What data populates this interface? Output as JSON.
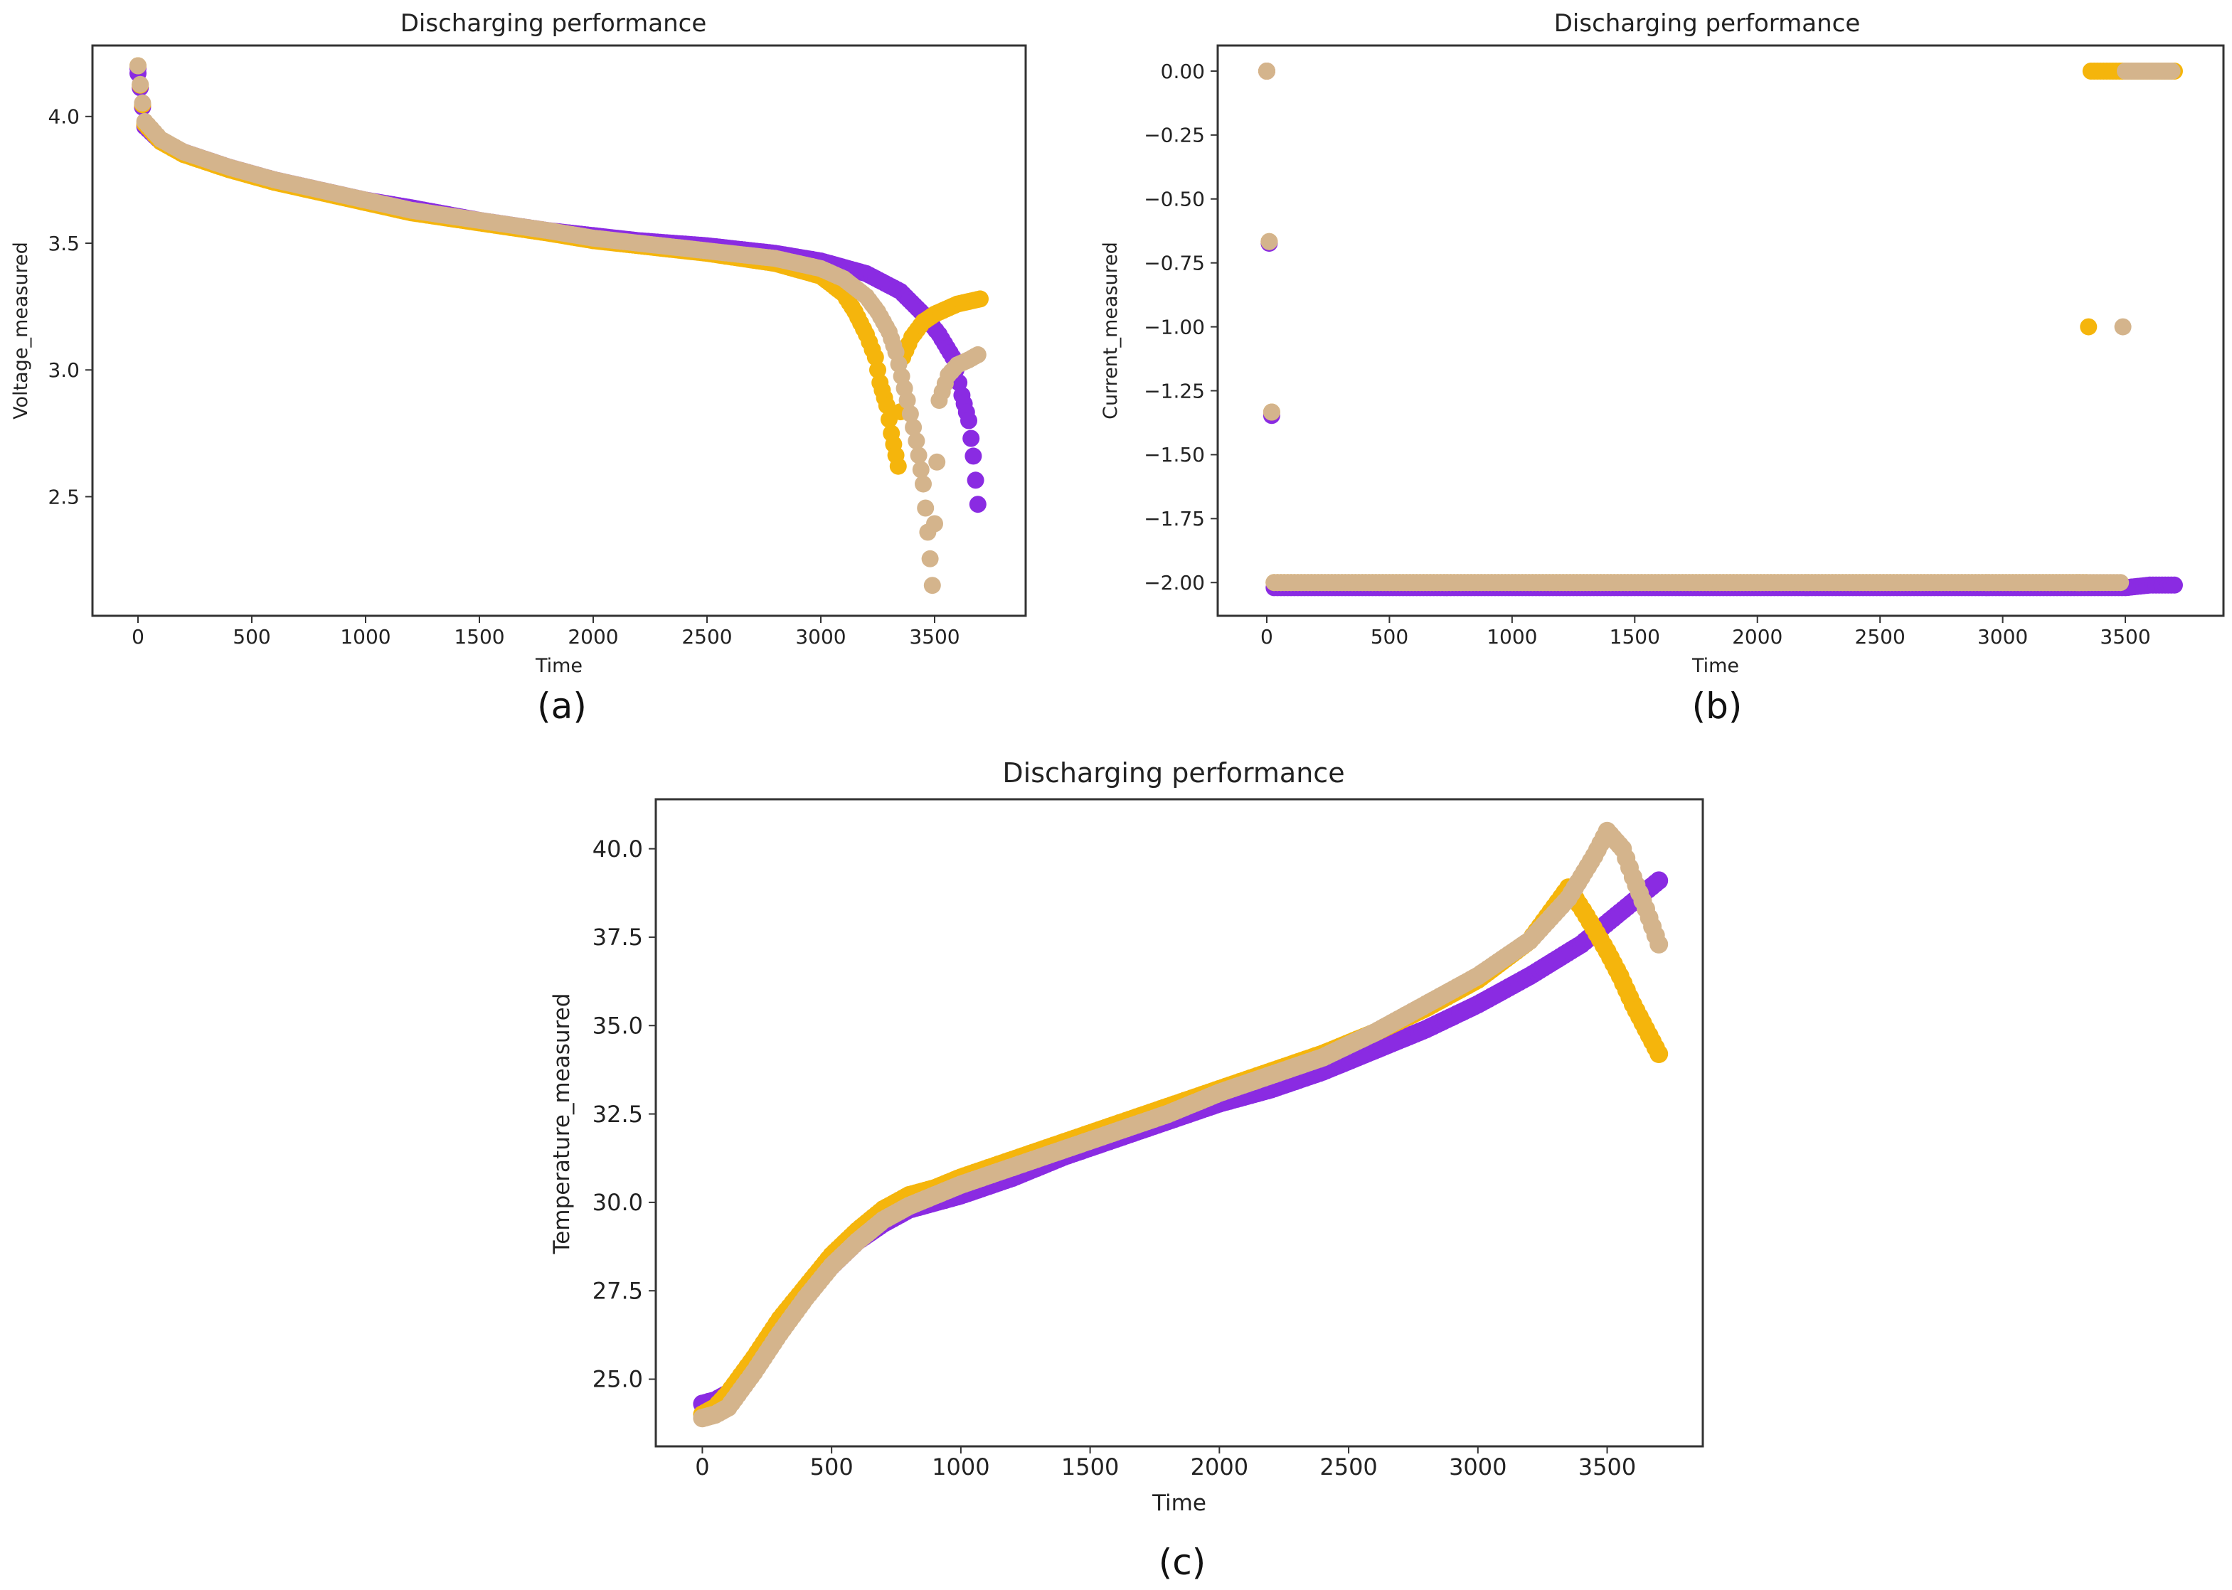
{
  "colors": {
    "series_a": "#8a2be2",
    "series_b": "#f5b50c",
    "series_c": "#d4b48c",
    "axis": "#333333"
  },
  "chart_data": [
    {
      "type": "scatter",
      "caption": "(a)",
      "title": "Discharging performance",
      "xlabel": "Time",
      "ylabel": "Voltage_measured",
      "xlim": [
        -200,
        3900
      ],
      "ylim": [
        2.03,
        4.28
      ],
      "xticks": [
        0,
        500,
        1000,
        1500,
        2000,
        2500,
        3000,
        3500
      ],
      "yticks": [
        2.5,
        3.0,
        3.5,
        4.0
      ],
      "ytick_decimals": 1,
      "series": [
        {
          "color_key": "series_a",
          "points": [
            [
              0,
              4.17
            ],
            [
              0,
              4.19
            ],
            [
              30,
              3.96
            ],
            [
              100,
              3.9
            ],
            [
              200,
              3.86
            ],
            [
              400,
              3.8
            ],
            [
              600,
              3.75
            ],
            [
              800,
              3.71
            ],
            [
              1000,
              3.67
            ],
            [
              1200,
              3.64
            ],
            [
              1500,
              3.59
            ],
            [
              1800,
              3.55
            ],
            [
              2000,
              3.53
            ],
            [
              2200,
              3.51
            ],
            [
              2500,
              3.49
            ],
            [
              2800,
              3.46
            ],
            [
              3000,
              3.43
            ],
            [
              3200,
              3.38
            ],
            [
              3350,
              3.31
            ],
            [
              3450,
              3.22
            ],
            [
              3520,
              3.14
            ],
            [
              3580,
              3.05
            ],
            [
              3620,
              2.9
            ],
            [
              3650,
              2.8
            ],
            [
              3670,
              2.66
            ],
            [
              3690,
              2.47
            ]
          ]
        },
        {
          "color_key": "series_b",
          "points": [
            [
              0,
              4.2
            ],
            [
              30,
              3.97
            ],
            [
              100,
              3.9
            ],
            [
              200,
              3.85
            ],
            [
              400,
              3.79
            ],
            [
              600,
              3.74
            ],
            [
              800,
              3.7
            ],
            [
              1000,
              3.66
            ],
            [
              1200,
              3.62
            ],
            [
              1500,
              3.58
            ],
            [
              1800,
              3.54
            ],
            [
              2000,
              3.51
            ],
            [
              2200,
              3.49
            ],
            [
              2500,
              3.46
            ],
            [
              2800,
              3.42
            ],
            [
              3000,
              3.37
            ],
            [
              3100,
              3.3
            ],
            [
              3150,
              3.23
            ],
            [
              3200,
              3.14
            ],
            [
              3240,
              3.05
            ],
            [
              3260,
              2.95
            ],
            [
              3290,
              2.86
            ],
            [
              3310,
              2.75
            ],
            [
              3340,
              2.62
            ],
            [
              3360,
              3.05
            ],
            [
              3400,
              3.13
            ],
            [
              3450,
              3.19
            ],
            [
              3500,
              3.22
            ],
            [
              3550,
              3.24
            ],
            [
              3600,
              3.26
            ],
            [
              3650,
              3.27
            ],
            [
              3700,
              3.28
            ]
          ]
        },
        {
          "color_key": "series_c",
          "points": [
            [
              0,
              4.2
            ],
            [
              30,
              3.98
            ],
            [
              100,
              3.91
            ],
            [
              200,
              3.86
            ],
            [
              400,
              3.8
            ],
            [
              600,
              3.75
            ],
            [
              800,
              3.71
            ],
            [
              1000,
              3.67
            ],
            [
              1200,
              3.63
            ],
            [
              1500,
              3.59
            ],
            [
              1800,
              3.55
            ],
            [
              2000,
              3.52
            ],
            [
              2200,
              3.5
            ],
            [
              2500,
              3.47
            ],
            [
              2800,
              3.44
            ],
            [
              3000,
              3.4
            ],
            [
              3100,
              3.36
            ],
            [
              3200,
              3.29
            ],
            [
              3250,
              3.23
            ],
            [
              3300,
              3.15
            ],
            [
              3330,
              3.07
            ],
            [
              3380,
              2.88
            ],
            [
              3420,
              2.72
            ],
            [
              3450,
              2.55
            ],
            [
              3470,
              2.36
            ],
            [
              3490,
              2.15
            ],
            [
              3520,
              2.88
            ],
            [
              3560,
              2.98
            ],
            [
              3600,
              3.02
            ],
            [
              3650,
              3.04
            ],
            [
              3690,
              3.06
            ]
          ]
        }
      ]
    },
    {
      "type": "scatter",
      "caption": "(b)",
      "title": "Discharging performance",
      "xlabel": "Time",
      "ylabel": "Current_measured",
      "xlim": [
        -200,
        3900
      ],
      "ylim": [
        -2.13,
        0.1
      ],
      "xticks": [
        0,
        500,
        1000,
        1500,
        2000,
        2500,
        3000,
        3500
      ],
      "yticks": [
        0.0,
        -0.25,
        -0.5,
        -0.75,
        -1.0,
        -1.25,
        -1.5,
        -1.75,
        -2.0
      ],
      "ytick_decimals": 2,
      "series": [
        {
          "color_key": "series_a",
          "points": [
            [
              0,
              0.0
            ],
            [
              30,
              -2.02
            ],
            [
              500,
              -2.02
            ],
            [
              1000,
              -2.02
            ],
            [
              1500,
              -2.02
            ],
            [
              2000,
              -2.02
            ],
            [
              2500,
              -2.02
            ],
            [
              3000,
              -2.02
            ],
            [
              3500,
              -2.02
            ],
            [
              3600,
              -2.01
            ],
            [
              3700,
              -2.01
            ]
          ]
        },
        {
          "color_key": "series_b",
          "points": [
            [
              0,
              0.0
            ],
            [
              30,
              -2.0
            ],
            [
              500,
              -2.0
            ],
            [
              1000,
              -2.0
            ],
            [
              1500,
              -2.0
            ],
            [
              2000,
              -2.0
            ],
            [
              2500,
              -2.0
            ],
            [
              3000,
              -2.0
            ],
            [
              3340,
              -2.0
            ],
            [
              3360,
              0.0
            ],
            [
              3450,
              0.0
            ],
            [
              3550,
              0.0
            ],
            [
              3650,
              0.0
            ],
            [
              3700,
              0.0
            ]
          ]
        },
        {
          "color_key": "series_c",
          "points": [
            [
              0,
              0.0
            ],
            [
              30,
              -2.0
            ],
            [
              500,
              -2.0
            ],
            [
              1000,
              -2.0
            ],
            [
              1500,
              -2.0
            ],
            [
              2000,
              -2.0
            ],
            [
              2500,
              -2.0
            ],
            [
              3000,
              -2.0
            ],
            [
              3480,
              -2.0
            ],
            [
              3500,
              0.0
            ],
            [
              3600,
              0.0
            ],
            [
              3690,
              0.0
            ]
          ]
        }
      ]
    },
    {
      "type": "scatter",
      "caption": "(c)",
      "title": "Discharging performance",
      "xlabel": "Time",
      "ylabel": "Temperature_measured",
      "xlim": [
        -180,
        3870
      ],
      "ylim": [
        23.1,
        41.4
      ],
      "xticks": [
        0,
        500,
        1000,
        1500,
        2000,
        2500,
        3000,
        3500
      ],
      "yticks": [
        25.0,
        27.5,
        30.0,
        32.5,
        35.0,
        37.5,
        40.0
      ],
      "ytick_decimals": 1,
      "series": [
        {
          "color_key": "series_a",
          "points": [
            [
              0,
              24.3
            ],
            [
              50,
              24.4
            ],
            [
              100,
              24.6
            ],
            [
              200,
              25.5
            ],
            [
              300,
              26.5
            ],
            [
              400,
              27.4
            ],
            [
              500,
              28.2
            ],
            [
              600,
              28.9
            ],
            [
              700,
              29.4
            ],
            [
              800,
              29.8
            ],
            [
              900,
              30.0
            ],
            [
              1000,
              30.2
            ],
            [
              1200,
              30.7
            ],
            [
              1400,
              31.3
            ],
            [
              1600,
              31.8
            ],
            [
              1800,
              32.3
            ],
            [
              2000,
              32.8
            ],
            [
              2200,
              33.2
            ],
            [
              2400,
              33.7
            ],
            [
              2600,
              34.3
            ],
            [
              2800,
              34.9
            ],
            [
              3000,
              35.6
            ],
            [
              3200,
              36.4
            ],
            [
              3400,
              37.3
            ],
            [
              3550,
              38.2
            ],
            [
              3700,
              39.1
            ]
          ]
        },
        {
          "color_key": "series_b",
          "points": [
            [
              0,
              24.0
            ],
            [
              50,
              24.2
            ],
            [
              100,
              24.6
            ],
            [
              200,
              25.6
            ],
            [
              300,
              26.7
            ],
            [
              400,
              27.6
            ],
            [
              500,
              28.5
            ],
            [
              600,
              29.2
            ],
            [
              700,
              29.8
            ],
            [
              800,
              30.2
            ],
            [
              900,
              30.4
            ],
            [
              1000,
              30.7
            ],
            [
              1200,
              31.2
            ],
            [
              1400,
              31.7
            ],
            [
              1600,
              32.2
            ],
            [
              1800,
              32.7
            ],
            [
              2000,
              33.2
            ],
            [
              2200,
              33.7
            ],
            [
              2400,
              34.2
            ],
            [
              2600,
              34.8
            ],
            [
              2800,
              35.5
            ],
            [
              3000,
              36.3
            ],
            [
              3200,
              37.4
            ],
            [
              3350,
              38.9
            ],
            [
              3420,
              38.1
            ],
            [
              3500,
              37.1
            ],
            [
              3550,
              36.4
            ],
            [
              3600,
              35.6
            ],
            [
              3650,
              34.9
            ],
            [
              3700,
              34.2
            ]
          ]
        },
        {
          "color_key": "series_c",
          "points": [
            [
              0,
              23.9
            ],
            [
              50,
              24.0
            ],
            [
              100,
              24.2
            ],
            [
              200,
              25.2
            ],
            [
              300,
              26.3
            ],
            [
              400,
              27.3
            ],
            [
              500,
              28.2
            ],
            [
              600,
              28.9
            ],
            [
              700,
              29.5
            ],
            [
              800,
              29.9
            ],
            [
              900,
              30.2
            ],
            [
              1000,
              30.5
            ],
            [
              1200,
              31.0
            ],
            [
              1400,
              31.5
            ],
            [
              1600,
              32.0
            ],
            [
              1800,
              32.5
            ],
            [
              2000,
              33.1
            ],
            [
              2200,
              33.6
            ],
            [
              2400,
              34.1
            ],
            [
              2600,
              34.8
            ],
            [
              2800,
              35.6
            ],
            [
              3000,
              36.4
            ],
            [
              3200,
              37.4
            ],
            [
              3350,
              38.6
            ],
            [
              3450,
              39.8
            ],
            [
              3500,
              40.5
            ],
            [
              3560,
              40.0
            ],
            [
              3600,
              39.2
            ],
            [
              3650,
              38.3
            ],
            [
              3700,
              37.3
            ]
          ]
        }
      ]
    }
  ]
}
